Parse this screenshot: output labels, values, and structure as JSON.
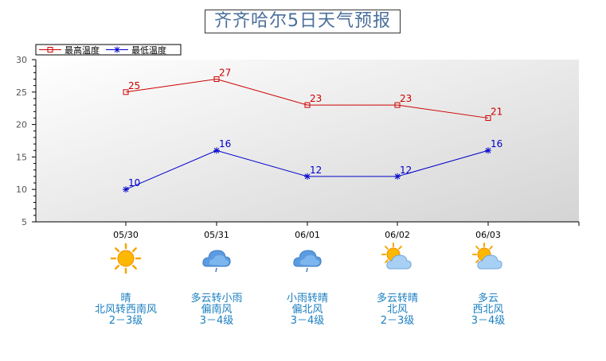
{
  "title": "齐齐哈尔5日天气预报",
  "chart_data": {
    "type": "line",
    "categories": [
      "05/30",
      "05/31",
      "06/01",
      "06/02",
      "06/03"
    ],
    "series": [
      {
        "name": "最高温度",
        "values": [
          25,
          27,
          23,
          23,
          21
        ],
        "color": "#cc0000",
        "marker": "square"
      },
      {
        "name": "最低温度",
        "values": [
          10,
          16,
          12,
          12,
          16
        ],
        "color": "#0000cc",
        "marker": "asterisk"
      }
    ],
    "ylim": [
      5,
      30
    ],
    "yticks": [
      5,
      10,
      15,
      20,
      25,
      30
    ],
    "legend": "top-left",
    "grid": false
  },
  "forecast": [
    {
      "date": "05/30",
      "icon": "sunny-icon",
      "weather": "晴",
      "wind": "北风转西南风",
      "level": "2－3级"
    },
    {
      "date": "05/31",
      "icon": "rain-cloud-icon",
      "weather": "多云转小雨",
      "wind": "偏南风",
      "level": "3－4级"
    },
    {
      "date": "06/01",
      "icon": "rain-cloud-icon",
      "weather": "小雨转晴",
      "wind": "偏北风",
      "level": "3－4级"
    },
    {
      "date": "06/02",
      "icon": "partly-cloudy-icon",
      "weather": "多云转晴",
      "wind": "北风",
      "level": "2－3级"
    },
    {
      "date": "06/03",
      "icon": "partly-cloudy-icon",
      "weather": "多云",
      "wind": "西北风",
      "level": "3－4级"
    }
  ]
}
